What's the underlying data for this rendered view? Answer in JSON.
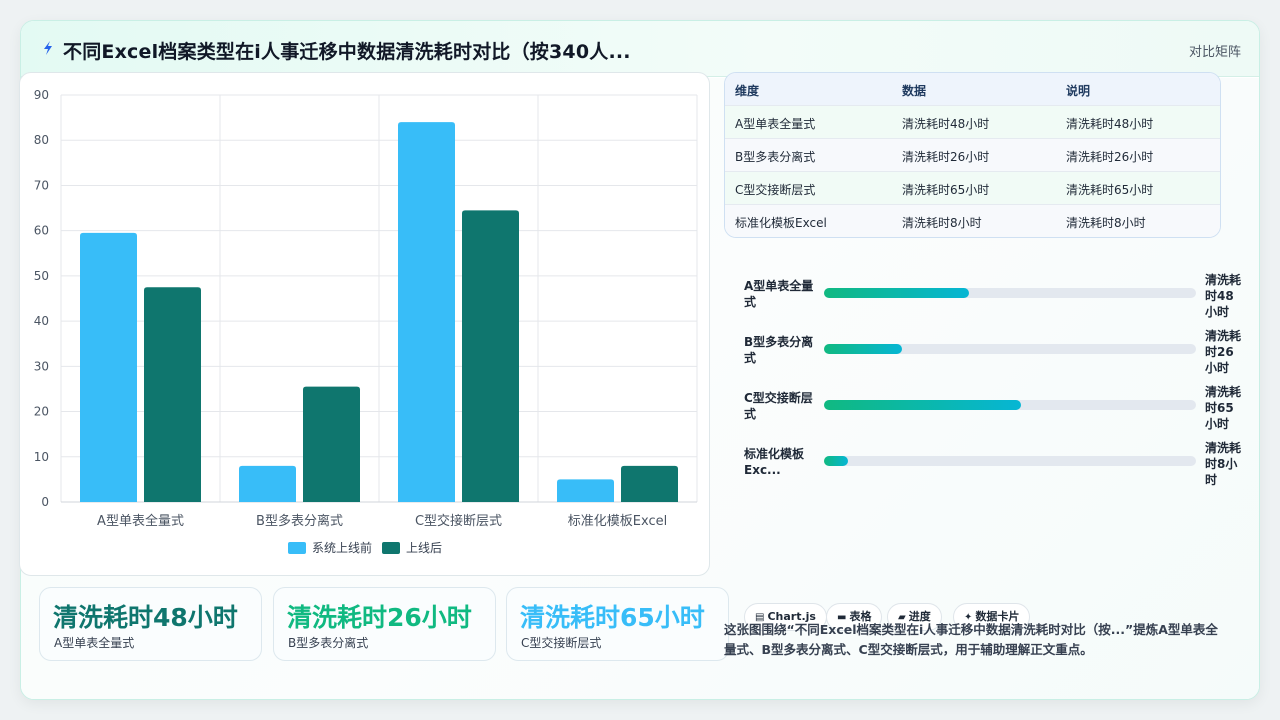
{
  "header": {
    "icon": "bolt-icon",
    "title": "不同Excel档案类型在i人事迁移中数据清洗耗时对比（按340人...",
    "right_label": "对比矩阵"
  },
  "chart_data": {
    "type": "bar",
    "categories": [
      "A型单表全量式",
      "B型多表分离式",
      "C型交接断层式",
      "标准化模板Excel"
    ],
    "series": [
      {
        "name": "系统上线前",
        "values": [
          59.5,
          8,
          84,
          5
        ],
        "color": "#38bdf8"
      },
      {
        "name": "上线后",
        "values": [
          47.5,
          25.5,
          64.5,
          8
        ],
        "color": "#0f766e"
      }
    ],
    "ylim": [
      0,
      90
    ],
    "yticks": [
      "0",
      "10",
      "20",
      "30",
      "40",
      "50",
      "60",
      "70",
      "80",
      "90"
    ],
    "grid": true,
    "legend_position": "bottom"
  },
  "stats": [
    {
      "value": "清洗耗时48小时",
      "label": "A型单表全量式",
      "color": "#0f766e"
    },
    {
      "value": "清洗耗时26小时",
      "label": "B型多表分离式",
      "color": "#10b981"
    },
    {
      "value": "清洗耗时65小时",
      "label": "C型交接断层式",
      "color": "#38bdf8"
    }
  ],
  "table": {
    "headers": [
      "维度",
      "数据",
      "说明"
    ],
    "rows": [
      [
        "A型单表全量式",
        "清洗耗时48小时",
        "清洗耗时48小时"
      ],
      [
        "B型多表分离式",
        "清洗耗时26小时",
        "清洗耗时26小时"
      ],
      [
        "C型交接断层式",
        "清洗耗时65小时",
        "清洗耗时65小时"
      ],
      [
        "标准化模板Excel",
        "清洗耗时8小时",
        "清洗耗时8小时"
      ]
    ]
  },
  "progress": [
    {
      "label": "A型单表全量式",
      "value_text": "清洗耗时48小时",
      "fraction": 0.39
    },
    {
      "label": "B型多表分离式",
      "value_text": "清洗耗时26小时",
      "fraction": 0.21
    },
    {
      "label": "C型交接断层式",
      "value_text": "清洗耗时65小时",
      "fraction": 0.53
    },
    {
      "label": "标准化模板Exc...",
      "value_text": "清洗耗时8小时",
      "fraction": 0.065
    }
  ],
  "chips": [
    {
      "icon": "chart-icon",
      "glyph": "▤",
      "label": "Chart.js"
    },
    {
      "icon": "table-icon",
      "glyph": "▬",
      "label": "表格"
    },
    {
      "icon": "progress-icon",
      "glyph": "▰",
      "label": "进度"
    },
    {
      "icon": "sparkle-icon",
      "glyph": "✦",
      "label": "数据卡片"
    }
  ],
  "summary": "这张图围绕“不同Excel档案类型在i人事迁移中数据清洗耗时对比（按...”提炼A型单表全量式、B型多表分离式、C型交接断层式，用于辅助理解正文重点。"
}
